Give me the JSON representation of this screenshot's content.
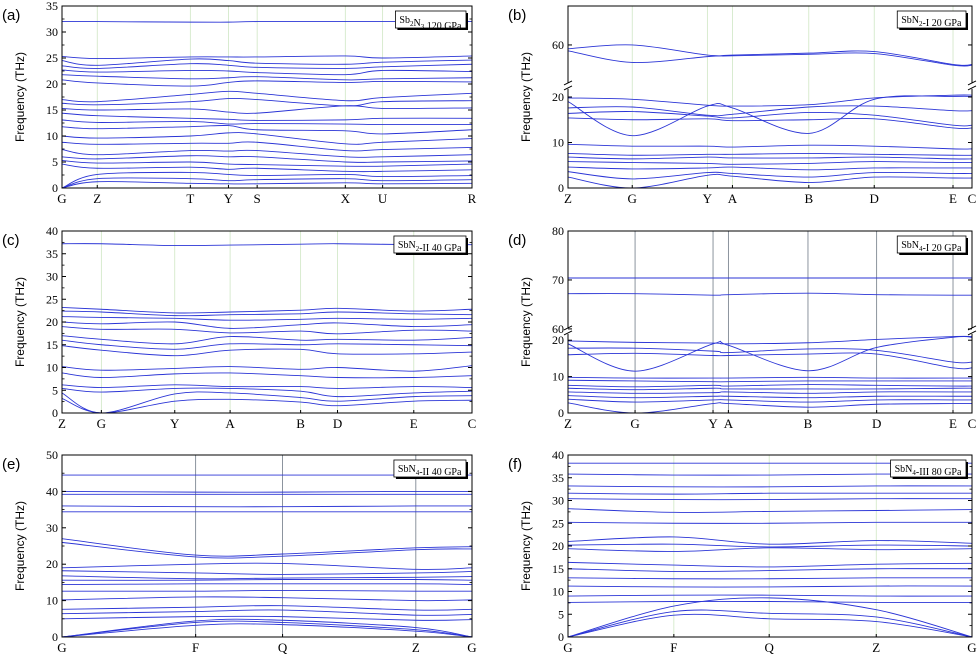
{
  "chart_data": [
    {
      "type": "line",
      "panel_label": "(a)",
      "legend": "Sb2N3 120 GPa",
      "legend_main": "Sb",
      "legend_sub1": "2",
      "legend_mid": "N",
      "legend_sub2": "3",
      "legend_tail": " 120 GPa",
      "ylabel": "Frequency (THz)",
      "ylim": [
        0,
        35
      ],
      "yticks": [
        0,
        5,
        10,
        15,
        20,
        25,
        30,
        35
      ],
      "kpoints": [
        "G",
        "Z",
        "T",
        "Y",
        "S",
        "X",
        "U",
        "R"
      ],
      "kpos": [
        0,
        0.086,
        0.313,
        0.406,
        0.476,
        0.691,
        0.782,
        1.0
      ],
      "guide_style": "faint",
      "bands": [
        [
          32.0,
          32.0,
          31.9,
          31.9,
          32.0,
          32.0,
          32.0,
          32.0
        ],
        [
          25.3,
          24.9,
          25.2,
          25.2,
          25.2,
          25.4,
          25.0,
          25.4
        ],
        [
          24.5,
          23.6,
          24.8,
          24.5,
          24.0,
          23.8,
          24.2,
          24.6
        ],
        [
          23.5,
          23.0,
          23.9,
          23.6,
          23.2,
          23.0,
          23.3,
          23.8
        ],
        [
          22.7,
          22.3,
          22.6,
          22.5,
          22.2,
          21.8,
          22.6,
          22.4
        ],
        [
          21.8,
          21.5,
          21.0,
          21.2,
          21.4,
          20.8,
          21.0,
          21.2
        ],
        [
          20.8,
          20.2,
          19.6,
          20.3,
          20.6,
          20.3,
          20.5,
          20.4
        ],
        [
          17.0,
          16.6,
          18.0,
          18.6,
          18.2,
          16.8,
          17.4,
          18.2
        ],
        [
          16.3,
          16.0,
          16.6,
          17.2,
          17.0,
          15.8,
          16.6,
          16.8
        ],
        [
          15.3,
          15.0,
          15.2,
          14.6,
          14.4,
          15.8,
          15.3,
          15.4
        ],
        [
          14.4,
          13.9,
          13.4,
          13.2,
          13.0,
          13.1,
          13.4,
          13.4
        ],
        [
          13.1,
          12.6,
          12.8,
          12.3,
          12.4,
          12.3,
          12.2,
          12.2
        ],
        [
          11.8,
          11.4,
          11.8,
          12.0,
          11.2,
          11.0,
          10.4,
          11.2
        ],
        [
          10.0,
          9.6,
          10.0,
          10.6,
          10.4,
          8.5,
          8.8,
          9.5
        ],
        [
          8.8,
          8.4,
          8.6,
          8.6,
          8.8,
          7.2,
          7.4,
          7.8
        ],
        [
          7.4,
          6.4,
          7.2,
          7.1,
          7.2,
          6.0,
          6.0,
          6.4
        ],
        [
          6.0,
          5.6,
          6.2,
          6.0,
          6.0,
          5.0,
          5.0,
          5.2
        ],
        [
          5.3,
          4.8,
          5.0,
          4.6,
          4.5,
          4.2,
          4.2,
          4.6
        ],
        [
          4.6,
          3.8,
          4.0,
          3.6,
          3.8,
          3.2,
          3.2,
          3.5
        ],
        [
          0.0,
          2.6,
          3.0,
          2.6,
          2.4,
          2.6,
          2.2,
          2.4
        ],
        [
          0.0,
          1.8,
          1.8,
          1.4,
          1.6,
          1.8,
          1.4,
          1.6
        ],
        [
          0.0,
          1.2,
          0.9,
          0.8,
          0.8,
          1.0,
          0.8,
          0.9
        ]
      ]
    },
    {
      "type": "line",
      "panel_label": "(b)",
      "legend": "SbN2-I 20 GPa",
      "legend_main": "SbN",
      "legend_sub1": "2",
      "legend_mid": "",
      "legend_sub2": "",
      "legend_tail": "-I 20 GPa",
      "ylabel": "Frequency (THz)",
      "ylim": [
        0,
        70
      ],
      "broken_axis": {
        "from": 22,
        "to": 50
      },
      "yticks": [
        0,
        10,
        20,
        60
      ],
      "kpoints": [
        "Z",
        "G",
        "Y",
        "A",
        "B",
        "D",
        "E",
        "C"
      ],
      "kpos": [
        0,
        0.159,
        0.345,
        0.407,
        0.596,
        0.758,
        0.953,
        1.0
      ],
      "guide_style": "faint",
      "bands": [
        [
          59.0,
          60.0,
          57.4,
          57.4,
          57.9,
          58.3,
          55.0,
          55.0
        ],
        [
          58.5,
          55.5,
          57.0,
          57.2,
          57.6,
          57.8,
          54.8,
          54.8
        ],
        [
          19.8,
          19.5,
          18.2,
          18.0,
          18.3,
          19.8,
          20.4,
          20.4
        ],
        [
          19.0,
          11.5,
          18.0,
          17.6,
          12.0,
          19.5,
          20.1,
          20.1
        ],
        [
          17.6,
          17.8,
          16.0,
          16.2,
          17.8,
          18.0,
          17.0,
          17.0
        ],
        [
          16.4,
          16.8,
          15.8,
          15.4,
          16.6,
          16.0,
          13.8,
          13.8
        ],
        [
          15.4,
          15.0,
          15.2,
          14.8,
          15.0,
          15.2,
          13.2,
          13.2
        ],
        [
          9.6,
          9.2,
          9.2,
          9.0,
          9.4,
          9.2,
          8.6,
          8.6
        ],
        [
          7.6,
          7.2,
          7.4,
          7.4,
          7.6,
          7.4,
          7.2,
          7.2
        ],
        [
          6.8,
          6.4,
          6.8,
          6.6,
          6.6,
          6.8,
          6.4,
          6.4
        ],
        [
          5.8,
          5.6,
          5.4,
          5.2,
          5.4,
          5.8,
          5.6,
          5.6
        ],
        [
          4.6,
          4.2,
          4.4,
          4.6,
          4.0,
          4.4,
          4.4,
          4.4
        ],
        [
          3.6,
          2.0,
          3.4,
          3.2,
          2.4,
          3.4,
          3.2,
          3.2
        ],
        [
          2.4,
          0.0,
          2.8,
          2.6,
          1.2,
          2.4,
          2.2,
          2.2
        ]
      ]
    },
    {
      "type": "line",
      "panel_label": "(c)",
      "legend": "SbN2-II 40 GPa",
      "legend_main": "SbN",
      "legend_sub1": "2",
      "legend_mid": "",
      "legend_sub2": "",
      "legend_tail": "-II 40 GPa",
      "ylabel": "Frequency (THz)",
      "ylim": [
        0,
        40
      ],
      "yticks": [
        0,
        5,
        10,
        15,
        20,
        25,
        30,
        35,
        40
      ],
      "kpoints": [
        "Z",
        "G",
        "Y",
        "A",
        "B",
        "D",
        "E",
        "C"
      ],
      "kpos": [
        0,
        0.096,
        0.275,
        0.41,
        0.582,
        0.672,
        0.858,
        1.0
      ],
      "guide_style": "faint",
      "bands": [
        [
          37.2,
          37.2,
          36.8,
          36.9,
          37.1,
          37.2,
          37.0,
          37.0
        ],
        [
          23.2,
          22.8,
          22.0,
          22.2,
          22.6,
          23.0,
          22.4,
          22.8
        ],
        [
          22.4,
          22.2,
          21.4,
          21.6,
          21.8,
          22.2,
          21.8,
          21.6
        ],
        [
          21.2,
          21.0,
          20.8,
          20.4,
          20.6,
          20.8,
          20.6,
          20.8
        ],
        [
          20.0,
          19.6,
          20.0,
          18.6,
          19.4,
          19.8,
          19.0,
          19.4
        ],
        [
          19.0,
          18.4,
          18.4,
          17.6,
          18.0,
          17.4,
          18.2,
          18.0
        ],
        [
          17.0,
          16.2,
          15.2,
          16.8,
          16.0,
          16.2,
          16.0,
          16.6
        ],
        [
          16.0,
          15.0,
          14.0,
          15.2,
          15.0,
          15.2,
          15.0,
          14.8
        ],
        [
          14.8,
          13.8,
          12.6,
          13.8,
          14.0,
          13.0,
          13.0,
          13.4
        ],
        [
          10.2,
          9.4,
          9.8,
          10.2,
          9.6,
          10.0,
          9.2,
          10.4
        ],
        [
          8.8,
          7.8,
          8.6,
          8.8,
          8.2,
          7.8,
          7.8,
          8.2
        ],
        [
          6.2,
          5.6,
          6.2,
          5.8,
          5.8,
          5.4,
          5.8,
          5.6
        ],
        [
          5.4,
          4.6,
          5.4,
          5.4,
          4.8,
          3.6,
          4.4,
          4.8
        ],
        [
          4.4,
          0.0,
          4.2,
          4.4,
          3.4,
          2.6,
          3.6,
          3.8
        ],
        [
          3.2,
          0.0,
          2.6,
          3.0,
          2.4,
          1.6,
          2.6,
          2.8
        ]
      ]
    },
    {
      "type": "line",
      "panel_label": "(d)",
      "legend": "SbN4-I 20 GPa",
      "legend_main": "SbN",
      "legend_sub1": "4",
      "legend_mid": "",
      "legend_sub2": "",
      "legend_tail": "-I 20 GPa",
      "ylabel": "Frequency (THz)",
      "ylim": [
        0,
        80
      ],
      "broken_axis": {
        "from": 22,
        "to": 60
      },
      "yticks": [
        0,
        10,
        20,
        60,
        70,
        80
      ],
      "kpoints": [
        "Z",
        "G",
        "Y",
        "A",
        "B",
        "D",
        "E",
        "C"
      ],
      "kpos": [
        0,
        0.166,
        0.359,
        0.397,
        0.594,
        0.764,
        0.953,
        1.0
      ],
      "guide_style": "solid",
      "bands": [
        [
          70.4,
          70.4,
          70.4,
          70.4,
          70.4,
          70.4,
          70.4,
          70.4
        ],
        [
          67.2,
          67.2,
          66.9,
          67.0,
          67.3,
          67.0,
          66.9,
          66.9
        ],
        [
          19.8,
          19.4,
          19.2,
          19.0,
          19.3,
          20.2,
          21.0,
          21.0
        ],
        [
          19.0,
          11.5,
          19.0,
          18.6,
          11.6,
          18.0,
          20.8,
          20.8
        ],
        [
          17.8,
          17.8,
          17.0,
          16.6,
          17.6,
          17.2,
          14.0,
          14.0
        ],
        [
          16.0,
          16.4,
          15.8,
          15.8,
          16.2,
          16.2,
          12.4,
          12.4
        ],
        [
          9.8,
          9.6,
          9.6,
          9.6,
          9.8,
          9.6,
          9.6,
          9.6
        ],
        [
          9.0,
          8.8,
          8.6,
          8.6,
          8.8,
          8.8,
          8.8,
          8.8
        ],
        [
          7.6,
          7.2,
          7.6,
          7.4,
          7.8,
          7.6,
          7.4,
          7.4
        ],
        [
          6.8,
          6.4,
          6.8,
          6.6,
          6.6,
          6.6,
          6.8,
          6.8
        ],
        [
          5.8,
          5.4,
          5.6,
          5.8,
          5.4,
          5.8,
          5.8,
          5.8
        ],
        [
          4.8,
          4.2,
          4.6,
          4.6,
          4.2,
          4.6,
          4.6,
          4.6
        ],
        [
          3.8,
          3.0,
          3.6,
          3.6,
          3.0,
          3.6,
          3.6,
          3.6
        ],
        [
          2.8,
          0.0,
          2.6,
          2.6,
          1.6,
          2.4,
          2.6,
          2.6
        ]
      ]
    },
    {
      "type": "line",
      "panel_label": "(e)",
      "legend": "SbN4-II 40 GPa",
      "legend_main": "SbN",
      "legend_sub1": "4",
      "legend_mid": "",
      "legend_sub2": "",
      "legend_tail": "-II 40 GPa",
      "ylabel": "Frequency (THz)",
      "ylim": [
        0,
        50
      ],
      "yticks": [
        0,
        10,
        20,
        30,
        40,
        50
      ],
      "kpoints": [
        "G",
        "F",
        "Q",
        "Z",
        "G"
      ],
      "kpos": [
        0,
        0.326,
        0.538,
        0.863,
        1.0
      ],
      "guide_style": "solid",
      "bands": [
        [
          44.5,
          44.5,
          44.5,
          44.5,
          44.5
        ],
        [
          40.0,
          39.8,
          39.8,
          40.0,
          40.0
        ],
        [
          39.2,
          39.2,
          39.2,
          39.2,
          39.2
        ],
        [
          36.0,
          35.8,
          35.8,
          36.0,
          36.0
        ],
        [
          34.4,
          34.4,
          34.4,
          34.4,
          34.4
        ],
        [
          27.0,
          22.5,
          22.8,
          24.5,
          24.8
        ],
        [
          26.0,
          22.0,
          22.2,
          24.0,
          24.2
        ],
        [
          19.0,
          20.0,
          20.2,
          18.6,
          19.0
        ],
        [
          18.2,
          17.6,
          17.2,
          17.6,
          18.0
        ],
        [
          16.8,
          16.0,
          16.2,
          16.4,
          16.6
        ],
        [
          15.6,
          15.6,
          15.8,
          15.8,
          15.6
        ],
        [
          14.4,
          14.6,
          14.6,
          14.6,
          14.4
        ],
        [
          12.6,
          12.6,
          12.8,
          12.6,
          12.6
        ],
        [
          10.2,
          11.0,
          10.8,
          10.0,
          10.2
        ],
        [
          7.6,
          8.2,
          8.6,
          7.4,
          7.6
        ],
        [
          6.4,
          7.0,
          7.4,
          6.0,
          6.2
        ],
        [
          5.0,
          5.6,
          5.6,
          4.6,
          4.8
        ],
        [
          0.0,
          4.4,
          4.6,
          2.6,
          0.0
        ],
        [
          0.0,
          4.0,
          4.0,
          2.0,
          0.0
        ],
        [
          0.0,
          3.2,
          3.4,
          1.6,
          0.0
        ]
      ]
    },
    {
      "type": "line",
      "panel_label": "(f)",
      "legend": "SbN4-III 80 GPa",
      "legend_main": "SbN",
      "legend_sub1": "4",
      "legend_mid": "",
      "legend_sub2": "",
      "legend_tail": "-III 80 GPa",
      "ylabel": "Frequency (THz)",
      "ylim": [
        0,
        40
      ],
      "yticks": [
        0,
        5,
        10,
        15,
        20,
        25,
        30,
        35,
        40
      ],
      "kpoints": [
        "G",
        "F",
        "Q",
        "Z",
        "G"
      ],
      "kpos": [
        0,
        0.262,
        0.498,
        0.763,
        1.0
      ],
      "guide_style": "faint",
      "bands": [
        [
          38.2,
          38.2,
          38.2,
          38.2,
          38.2
        ],
        [
          35.8,
          35.6,
          35.6,
          35.8,
          35.8
        ],
        [
          33.2,
          33.0,
          33.0,
          33.2,
          33.2
        ],
        [
          31.6,
          31.4,
          31.6,
          31.6,
          31.6
        ],
        [
          30.4,
          30.2,
          30.2,
          30.4,
          30.4
        ],
        [
          28.2,
          27.4,
          27.6,
          27.8,
          28.0
        ],
        [
          25.2,
          25.0,
          25.0,
          25.2,
          25.2
        ],
        [
          21.0,
          22.0,
          20.4,
          21.2,
          20.6
        ],
        [
          20.2,
          20.4,
          19.8,
          20.2,
          20.0
        ],
        [
          19.4,
          18.8,
          19.6,
          19.2,
          19.4
        ],
        [
          16.4,
          15.8,
          15.4,
          16.0,
          16.2
        ],
        [
          15.0,
          14.4,
          14.6,
          15.0,
          15.0
        ],
        [
          13.0,
          12.8,
          12.8,
          13.0,
          13.0
        ],
        [
          11.2,
          11.0,
          11.0,
          11.2,
          11.2
        ],
        [
          9.0,
          9.2,
          9.2,
          9.0,
          9.0
        ],
        [
          7.6,
          7.8,
          7.8,
          7.6,
          7.6
        ],
        [
          0.0,
          6.8,
          8.6,
          6.0,
          0.0
        ],
        [
          0.0,
          5.6,
          5.2,
          4.4,
          0.0
        ],
        [
          0.0,
          4.8,
          4.0,
          3.4,
          0.0
        ]
      ]
    }
  ]
}
